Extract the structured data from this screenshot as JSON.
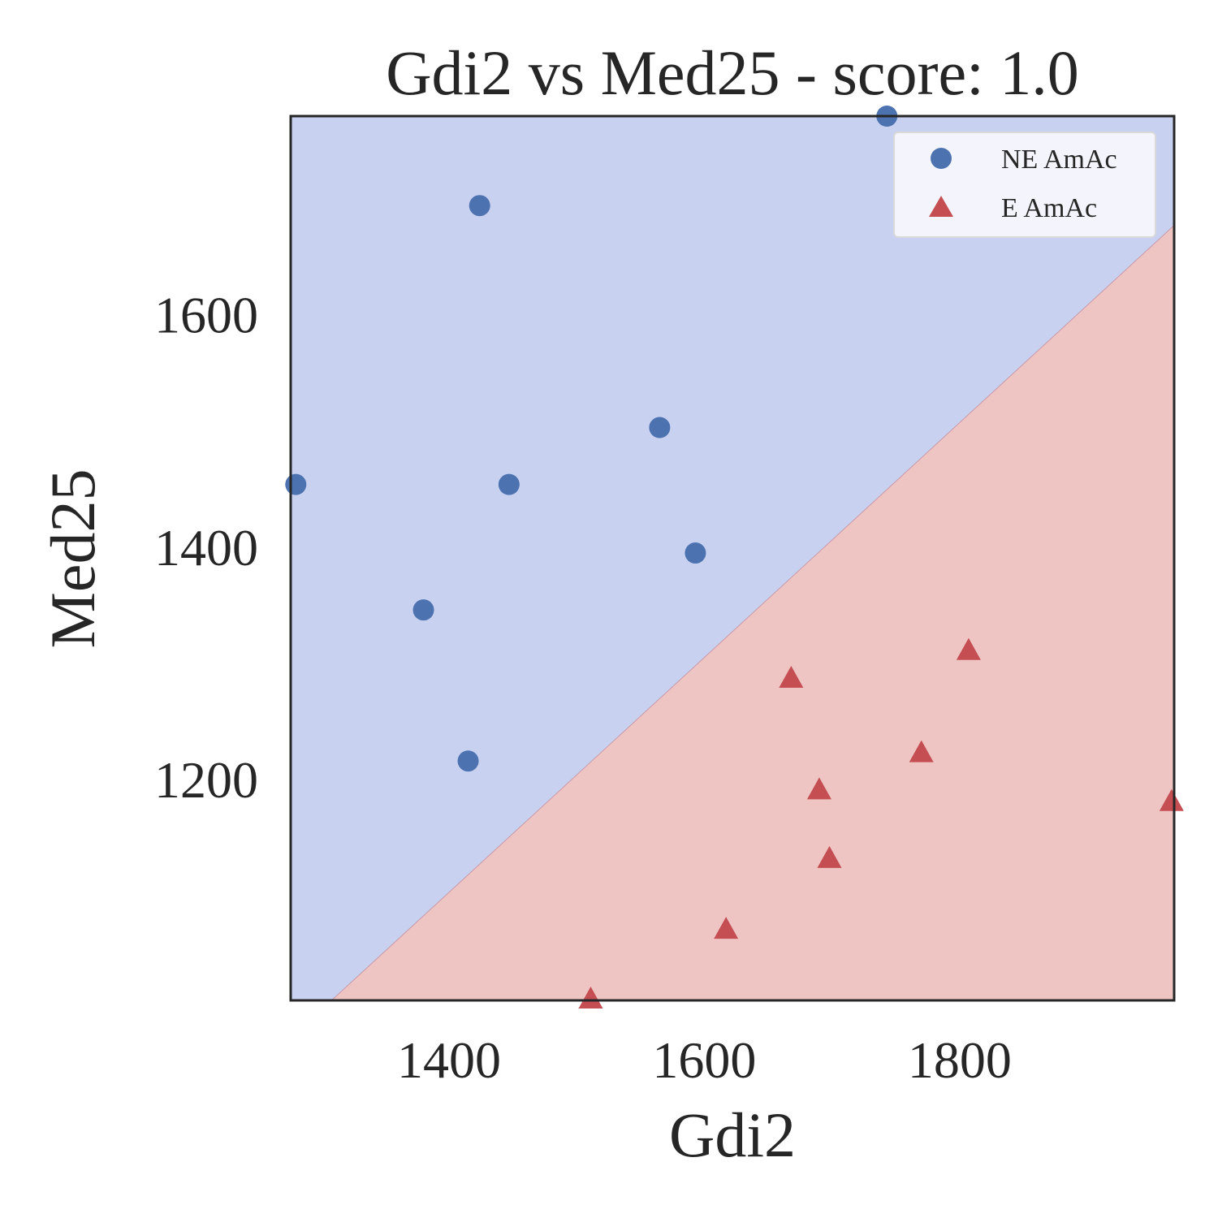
{
  "chart_data": {
    "type": "scatter",
    "title": "Gdi2 vs Med25 - score: 1.0",
    "xlabel": "Gdi2",
    "ylabel": "Med25",
    "xlim": [
      1276,
      1968
    ],
    "ylim": [
      1010,
      1771
    ],
    "xticks": [
      1400,
      1600,
      1800
    ],
    "yticks": [
      1200,
      1400,
      1600
    ],
    "grid": false,
    "legend_position": "top-right",
    "decision_boundary": {
      "points": [
        [
          1308,
          1010
        ],
        [
          1968,
          1677
        ]
      ],
      "classes": [
        "NE AmAc",
        "E AmAc"
      ],
      "colors": [
        "#c9d1f1",
        "#efc5c4"
      ]
    },
    "series": [
      {
        "name": "NE AmAc",
        "marker": "circle",
        "color": "#4c72b0",
        "points": [
          [
            1280,
            1454
          ],
          [
            1424,
            1694
          ],
          [
            1380,
            1346
          ],
          [
            1415,
            1216
          ],
          [
            1447,
            1454
          ],
          [
            1565,
            1503
          ],
          [
            1593,
            1395
          ],
          [
            1743,
            1771
          ]
        ]
      },
      {
        "name": "E AmAc",
        "marker": "triangle",
        "color": "#c44e52",
        "points": [
          [
            1511,
            1010
          ],
          [
            1617,
            1070
          ],
          [
            1668,
            1286
          ],
          [
            1690,
            1190
          ],
          [
            1698,
            1131
          ],
          [
            1770,
            1222
          ],
          [
            1807,
            1310
          ],
          [
            1966,
            1180
          ]
        ]
      }
    ]
  }
}
